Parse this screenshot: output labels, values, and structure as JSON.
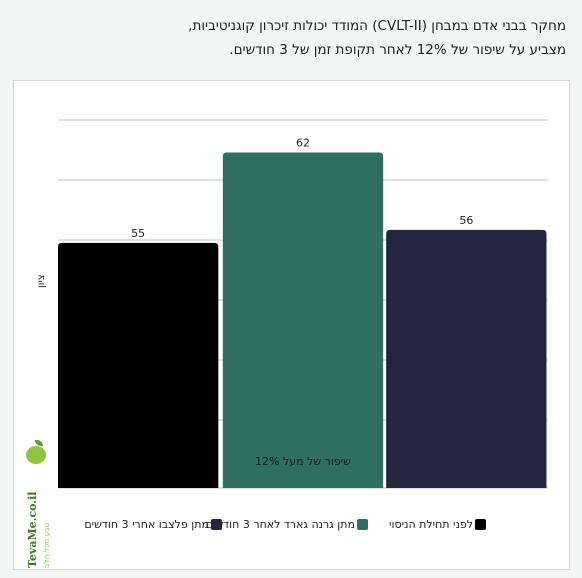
{
  "caption": {
    "line1": "מחקר בבני אדם במבחן (CVLT-II) המודד יכולות זיכרון קוגניטיביות,",
    "line2": "מצביע על שיפור של 12% לאחר תקופת זמן של 3 חודשים."
  },
  "logo": {
    "name": "TevaMe.co.il",
    "tagline": "טבע מכל הלב"
  },
  "chart_data": {
    "type": "bar",
    "categories": [
      "לפני תחילת הניסוי",
      "מתן גרנה גארד לאחר 3 חודשים",
      "מתן פלצבו אחרי 3 חודשים"
    ],
    "values": [
      55,
      62,
      56
    ],
    "value_labels": [
      "55",
      "62",
      "56"
    ],
    "colors": [
      "#000000",
      "#2f6e62",
      "#22273f"
    ],
    "ylabel": "ציון",
    "ylim": [
      36,
      67
    ],
    "grid": true,
    "annotation": "שיפור של מעל 12%",
    "legend": [
      {
        "label": "לפני תחילת הניסוי",
        "color": "#000000"
      },
      {
        "label": "מתן גרנה גארד לאחר 3 חודשים",
        "color": "#2f6e62"
      },
      {
        "label": "מתן פלצבו אחרי 3 חודשים",
        "color": "#22273f"
      }
    ],
    "legend_position": "bottom"
  }
}
